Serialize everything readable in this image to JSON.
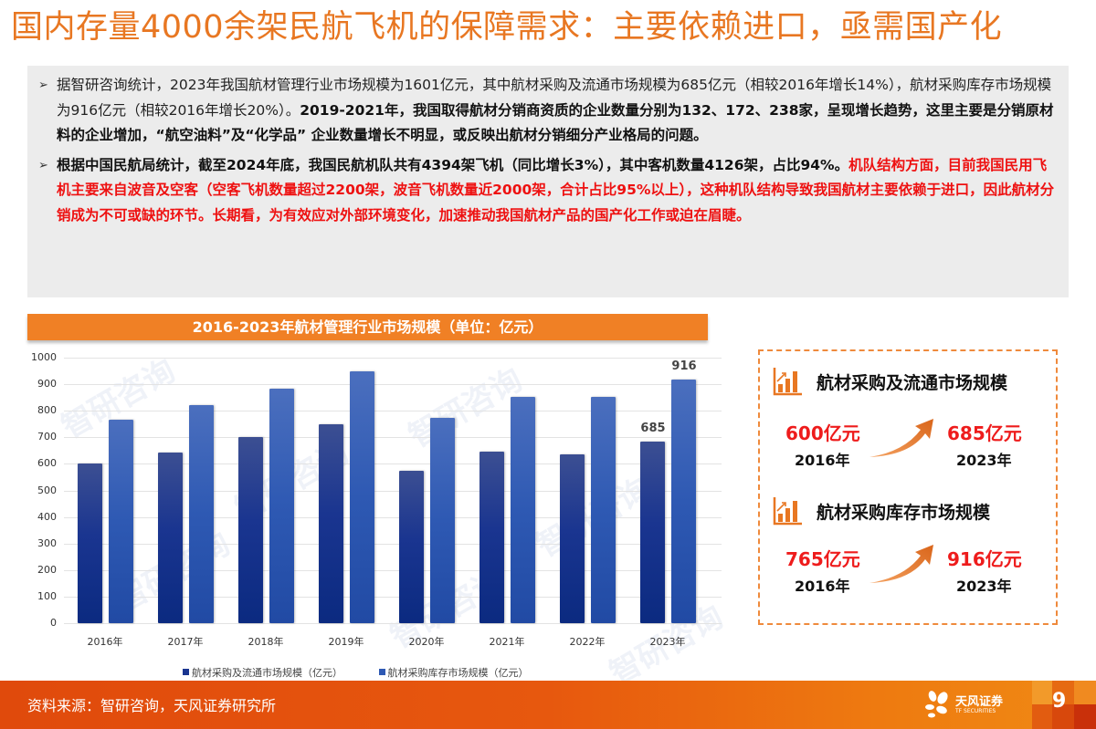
{
  "title": "国内存量4000余架民航飞机的保障需求：主要依赖进口，亟需国产化",
  "text_box": {
    "paragraphs": [
      {
        "bullet": "➢",
        "runs": [
          {
            "style": "normal",
            "text": "据智研咨询统计，2023年我国航材管理行业市场规模为1601亿元，其中航材采购及流通市场规模为685亿元（相较2016年增长14%），航材采购库存市场规模为916亿元（相较2016年增长20%）。"
          },
          {
            "style": "bold",
            "text": "2019-2021年，我国取得航材分销商资质的企业数量分别为132、172、238家，呈现增长趋势，这里主要是分销原材料的企业增加，“航空油料”及“化学品” 企业数量增长不明显，或反映出航材分销细分产业格局的问题。"
          }
        ]
      },
      {
        "bullet": "➢",
        "runs": [
          {
            "style": "bold",
            "text": "根据中国民航局统计，截至2024年底，我国民航机队共有4394架飞机（同比增长3%），其中客机数量4126架，占比94%。"
          },
          {
            "style": "red",
            "text": "机队结构方面，目前我国民用飞机主要来自波音及空客（空客飞机数量超过2200架，波音飞机数量近2000架，合计占比95%以上），这种机队结构导致我国航材主要依赖于进口，因此航材分销成为不可或缺的环节。长期看，为有效应对外部环境变化，加速推动我国航材产品的国产化工作或迫在眉睫。"
          }
        ]
      }
    ]
  },
  "chart_title": "2016-2023年航材管理行业市场规模（单位：亿元）",
  "chart_data": {
    "type": "bar",
    "title": "2016-2023年航材管理行业市场规模（单位：亿元）",
    "categories": [
      "2016年",
      "2017年",
      "2018年",
      "2019年",
      "2020年",
      "2021年",
      "2022年",
      "2023年"
    ],
    "series": [
      {
        "name": "航材采购及流通市场规模（亿元）",
        "color": "#1a3590",
        "values": [
          600,
          642,
          700,
          750,
          573,
          645,
          635,
          685
        ]
      },
      {
        "name": "航材采购库存市场规模（亿元）",
        "color": "#2e59b3",
        "values": [
          765,
          822,
          882,
          948,
          772,
          852,
          852,
          916
        ]
      }
    ],
    "data_labels": [
      {
        "series": 0,
        "index": 7,
        "text": "685"
      },
      {
        "series": 1,
        "index": 7,
        "text": "916"
      }
    ],
    "yticks": [
      "0",
      "100",
      "200",
      "300",
      "400",
      "500",
      "600",
      "700",
      "800",
      "900",
      "1000"
    ],
    "ylim": [
      0,
      1000
    ],
    "xlabel": "",
    "ylabel": "",
    "grid": true,
    "legend_position": "bottom",
    "watermark": "智研咨询"
  },
  "info_box": {
    "sections": [
      {
        "heading": "航材采购及流通市场规模",
        "from_value": "600亿元",
        "from_year": "2016年",
        "to_value": "685亿元",
        "to_year": "2023年"
      },
      {
        "heading": "航材采购库存市场规模",
        "from_value": "765亿元",
        "from_year": "2016年",
        "to_value": "916亿元",
        "to_year": "2023年"
      }
    ],
    "icon": "bar-chart-growth-icon",
    "arrow_icon": "curved-up-arrow-icon",
    "accent_color": "#e87722",
    "value_color": "#ee1c1c"
  },
  "footer": {
    "source": "资料来源：智研咨询，天风证券研究所",
    "logo_text": "天风证券",
    "logo_subtext": "TF SECURITIES",
    "page_number": "9"
  },
  "colors": {
    "title": "#e87722",
    "chart_title_bar": "#f08025",
    "footer": "#e04a0c",
    "red_text": "#ee1111",
    "text_box_bg": "#ececec"
  }
}
